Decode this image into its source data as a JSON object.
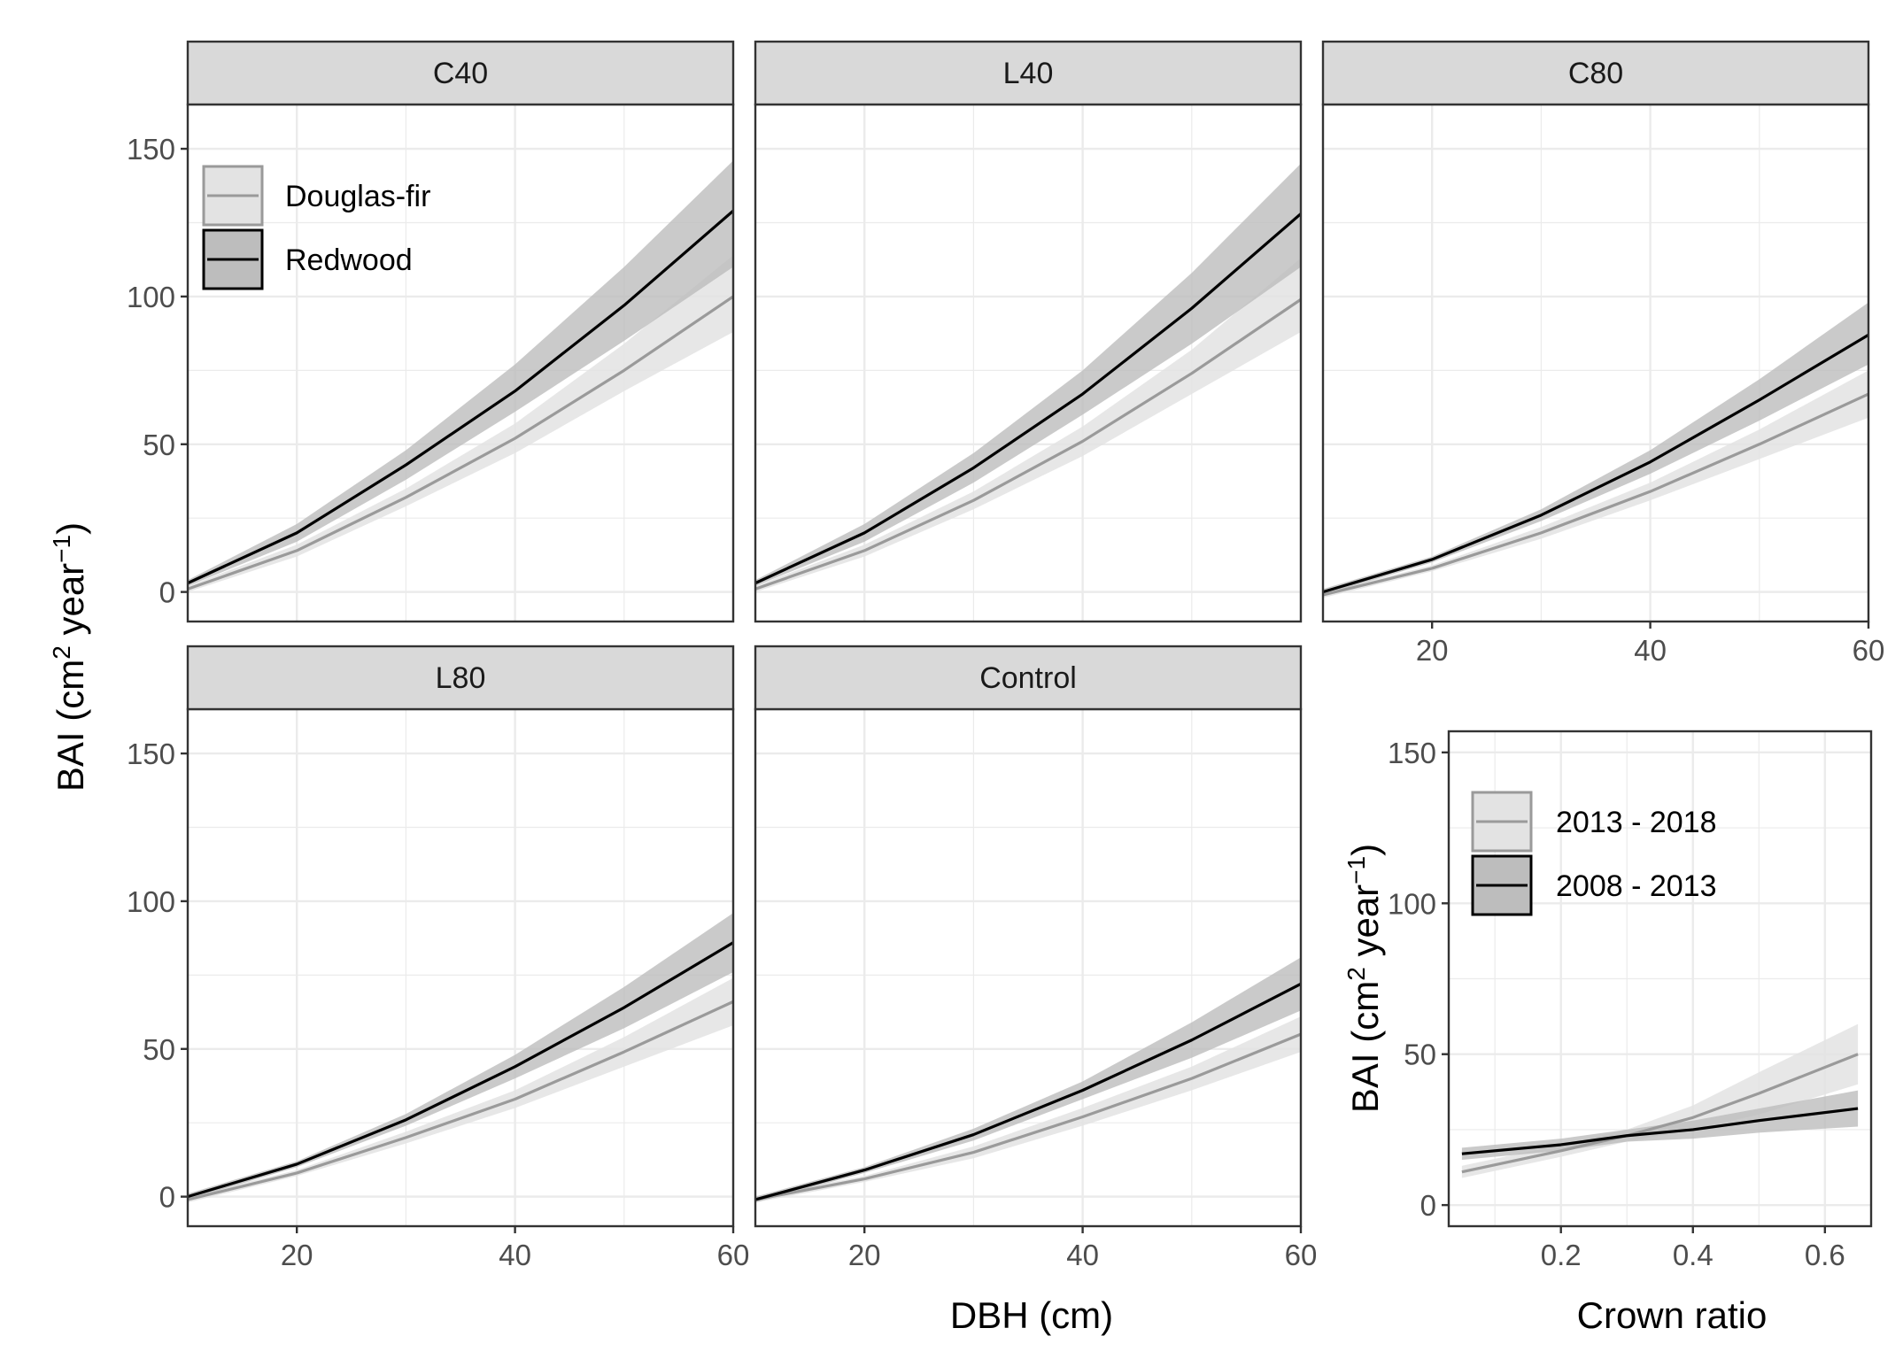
{
  "colors": {
    "douglas_fir_line": "#9a9a9a",
    "douglas_fir_band": "#e3e3e3",
    "redwood_line": "#000000",
    "redwood_band": "#bdbdbd",
    "strip_fill": "#d9d9d9",
    "grid": "#ebebeb"
  },
  "axis_titles": {
    "bai_prefix": "BAI (cm",
    "bai_sup1": "2",
    "bai_mid": " year",
    "bai_sup2": "−1",
    "bai_suffix": ")",
    "dbh": "DBH (cm)",
    "crown": "Crown ratio"
  },
  "legend_species": [
    "Douglas-fir",
    "Redwood"
  ],
  "legend_period": [
    "2013 - 2018",
    "2008 - 2013"
  ],
  "chart_data": [
    {
      "type": "line",
      "panel": "C40",
      "xlim": [
        10,
        60
      ],
      "ylim": [
        -10,
        165
      ],
      "x_ticks": [
        20,
        40,
        60
      ],
      "y_ticks": [
        0,
        50,
        100,
        150
      ],
      "grid": true,
      "legend": "top-left",
      "series": [
        {
          "name": "Douglas-fir",
          "x": [
            10,
            20,
            30,
            40,
            50,
            60
          ],
          "y": [
            1,
            14,
            32,
            52,
            75,
            100
          ],
          "lower": [
            0,
            12,
            29,
            47,
            68,
            88
          ],
          "upper": [
            2,
            16,
            35,
            57,
            84,
            114
          ]
        },
        {
          "name": "Redwood",
          "x": [
            10,
            20,
            30,
            40,
            50,
            60
          ],
          "y": [
            3,
            20,
            43,
            68,
            97,
            129
          ],
          "lower": [
            2,
            17,
            38,
            61,
            85,
            110
          ],
          "upper": [
            4,
            23,
            48,
            77,
            110,
            146
          ]
        }
      ]
    },
    {
      "type": "line",
      "panel": "L40",
      "xlim": [
        10,
        60
      ],
      "ylim": [
        -10,
        165
      ],
      "x_ticks": [
        20,
        40,
        60
      ],
      "y_ticks": [
        0,
        50,
        100,
        150
      ],
      "grid": true,
      "series": [
        {
          "name": "Douglas-fir",
          "x": [
            10,
            20,
            30,
            40,
            50,
            60
          ],
          "y": [
            1,
            14,
            31,
            51,
            74,
            99
          ],
          "lower": [
            0,
            12,
            28,
            46,
            67,
            88
          ],
          "upper": [
            2,
            16,
            34,
            56,
            82,
            113
          ]
        },
        {
          "name": "Redwood",
          "x": [
            10,
            20,
            30,
            40,
            50,
            60
          ],
          "y": [
            3,
            20,
            42,
            67,
            96,
            128
          ],
          "lower": [
            2,
            17,
            37,
            60,
            84,
            110
          ],
          "upper": [
            4,
            23,
            47,
            75,
            108,
            145
          ]
        }
      ]
    },
    {
      "type": "line",
      "panel": "C80",
      "xlim": [
        10,
        60
      ],
      "ylim": [
        -10,
        165
      ],
      "x_ticks": [
        20,
        40,
        60
      ],
      "y_ticks": [
        0,
        50,
        100,
        150
      ],
      "grid": true,
      "series": [
        {
          "name": "Douglas-fir",
          "x": [
            10,
            20,
            30,
            40,
            50,
            60
          ],
          "y": [
            -1,
            8,
            20,
            34,
            50,
            67
          ],
          "lower": [
            -2,
            7,
            18,
            31,
            45,
            59
          ],
          "upper": [
            0,
            9,
            22,
            37,
            55,
            75
          ]
        },
        {
          "name": "Redwood",
          "x": [
            10,
            20,
            30,
            40,
            50,
            60
          ],
          "y": [
            0,
            11,
            26,
            44,
            65,
            87
          ],
          "lower": [
            -1,
            10,
            24,
            40,
            58,
            77
          ],
          "upper": [
            1,
            12,
            28,
            48,
            72,
            98
          ]
        }
      ]
    },
    {
      "type": "line",
      "panel": "L80",
      "xlim": [
        10,
        60
      ],
      "ylim": [
        -10,
        165
      ],
      "x_ticks": [
        20,
        40,
        60
      ],
      "y_ticks": [
        0,
        50,
        100,
        150
      ],
      "grid": true,
      "series": [
        {
          "name": "Douglas-fir",
          "x": [
            10,
            20,
            30,
            40,
            50,
            60
          ],
          "y": [
            -1,
            8,
            20,
            33,
            49,
            66
          ],
          "lower": [
            -2,
            7,
            18,
            30,
            44,
            58
          ],
          "upper": [
            0,
            9,
            22,
            36,
            54,
            74
          ]
        },
        {
          "name": "Redwood",
          "x": [
            10,
            20,
            30,
            40,
            50,
            60
          ],
          "y": [
            0,
            11,
            26,
            44,
            64,
            86
          ],
          "lower": [
            -1,
            10,
            24,
            40,
            57,
            76
          ],
          "upper": [
            1,
            12,
            28,
            48,
            71,
            96
          ]
        }
      ]
    },
    {
      "type": "line",
      "panel": "Control",
      "xlim": [
        10,
        60
      ],
      "ylim": [
        -10,
        165
      ],
      "x_ticks": [
        20,
        40,
        60
      ],
      "y_ticks": [
        0,
        50,
        100,
        150
      ],
      "grid": true,
      "series": [
        {
          "name": "Douglas-fir",
          "x": [
            10,
            20,
            30,
            40,
            50,
            60
          ],
          "y": [
            -1,
            6,
            15,
            27,
            40,
            55
          ],
          "lower": [
            -2,
            5,
            13,
            24,
            36,
            49
          ],
          "upper": [
            0,
            7,
            17,
            30,
            44,
            61
          ]
        },
        {
          "name": "Redwood",
          "x": [
            10,
            20,
            30,
            40,
            50,
            60
          ],
          "y": [
            -1,
            9,
            21,
            36,
            53,
            72
          ],
          "lower": [
            -2,
            8,
            19,
            33,
            47,
            63
          ],
          "upper": [
            0,
            10,
            23,
            39,
            59,
            81
          ]
        }
      ]
    },
    {
      "type": "line",
      "panel": "",
      "xlim": [
        0.03,
        0.67
      ],
      "ylim": [
        -7,
        157
      ],
      "x_ticks": [
        0.2,
        0.4,
        0.6
      ],
      "y_ticks": [
        0,
        50,
        100,
        150
      ],
      "grid": true,
      "legend": "top-left",
      "series": [
        {
          "name": "2013 - 2018",
          "x": [
            0.05,
            0.2,
            0.3,
            0.4,
            0.5,
            0.65
          ],
          "y": [
            11,
            18,
            23,
            29,
            37,
            50
          ],
          "lower": [
            9,
            16,
            21,
            25,
            30,
            40
          ],
          "upper": [
            13,
            20,
            25,
            33,
            44,
            60
          ]
        },
        {
          "name": "2008 - 2013",
          "x": [
            0.05,
            0.2,
            0.3,
            0.4,
            0.5,
            0.65
          ],
          "y": [
            17,
            20,
            23,
            25,
            28,
            32
          ],
          "lower": [
            15,
            18,
            21,
            22,
            24,
            26
          ],
          "upper": [
            19,
            22,
            25,
            28,
            32,
            38
          ]
        }
      ]
    }
  ]
}
